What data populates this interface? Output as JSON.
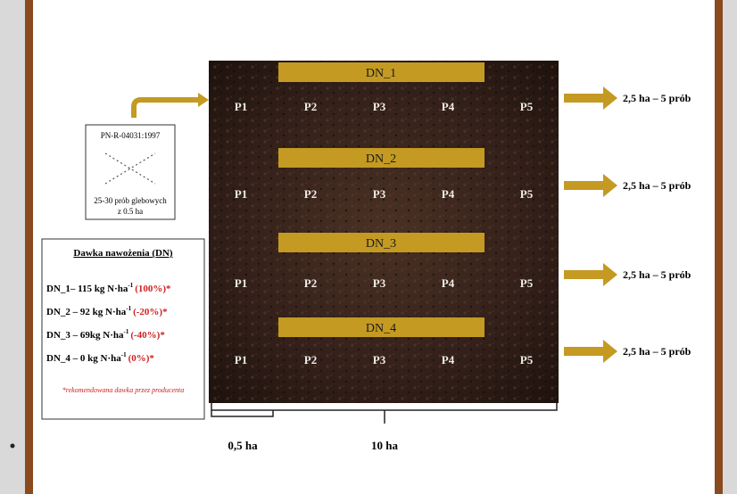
{
  "field": {
    "doses": [
      {
        "label": "DN_1",
        "plots": [
          "P1",
          "P2",
          "P3",
          "P4",
          "P5"
        ],
        "sampling": "2,5 ha – 5 prób"
      },
      {
        "label": "DN_2",
        "plots": [
          "P1",
          "P2",
          "P3",
          "P4",
          "P5"
        ],
        "sampling": "2,5 ha – 5 prób"
      },
      {
        "label": "DN_3",
        "plots": [
          "P1",
          "P2",
          "P3",
          "P4",
          "P5"
        ],
        "sampling": "2,5 ha – 5 prób"
      },
      {
        "label": "DN_4",
        "plots": [
          "P1",
          "P2",
          "P3",
          "P4",
          "P5"
        ],
        "sampling": "2,5 ha – 5 prób"
      }
    ]
  },
  "method_box": {
    "standard": "PN-R-04031:1997",
    "note_line1": "25-30 prób glebowych",
    "note_line2": "z 0.5 ha"
  },
  "legend": {
    "title": "Dawka nawożenia (DN)",
    "rows": [
      {
        "text": "DN_1– 115 kg N·ha",
        "exp": "-1",
        "pct": "(100%)*"
      },
      {
        "text": "DN_2 – 92 kg N·ha",
        "exp": "-1",
        "pct": "(-20%)*"
      },
      {
        "text": "DN_3 – 69kg N·ha",
        "exp": "-1",
        "pct": "(-40%)*"
      },
      {
        "text": "DN_4 – 0 kg N·ha",
        "exp": "-1",
        "pct": "(0%)*"
      }
    ],
    "footnote": "*rekomendowana dawka przez producenta"
  },
  "scale": {
    "small": "0,5 ha",
    "total": "10 ha"
  }
}
